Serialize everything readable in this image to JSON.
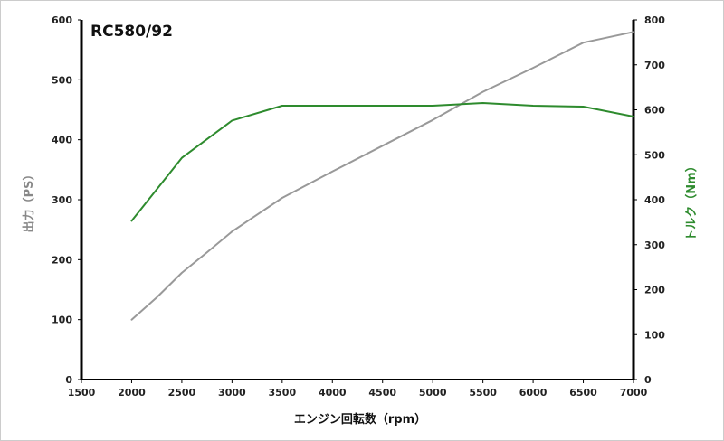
{
  "chart_data": {
    "type": "line",
    "title": "RC580/92",
    "xlabel": "エンジン回転数（rpm）",
    "ylabel_left": "出力（PS）",
    "ylabel_right": "トルク（Nm）",
    "xlim": [
      1500,
      7000
    ],
    "x_ticks": [
      "1500",
      "2000",
      "2500",
      "3000",
      "3500",
      "4000",
      "4500",
      "5000",
      "5500",
      "6000",
      "6500",
      "7000"
    ],
    "ylim_left": [
      0,
      600
    ],
    "y_ticks_left": [
      "0",
      "100",
      "200",
      "300",
      "400",
      "500",
      "600"
    ],
    "ylim_right": [
      0,
      800
    ],
    "y_ticks_right": [
      "0",
      "100",
      "200",
      "300",
      "400",
      "500",
      "600",
      "700",
      "800"
    ],
    "grid": false,
    "series": [
      {
        "axis": "left",
        "color": "#999999",
        "x": [
          2000,
          2250,
          2500,
          2750,
          3000,
          3250,
          3500,
          4000,
          4500,
          5000,
          5500,
          6000,
          6500,
          7000
        ],
        "values": [
          100,
          137,
          178,
          212,
          247,
          275,
          303,
          347,
          390,
          433,
          480,
          520,
          562,
          580
        ]
      },
      {
        "axis": "right",
        "color": "#2e8b2e",
        "x": [
          2000,
          2500,
          3000,
          3500,
          4000,
          4500,
          5000,
          5500,
          6000,
          6500,
          7000
        ],
        "values": [
          353,
          493,
          576,
          609,
          609,
          609,
          609,
          615,
          609,
          607,
          585
        ]
      }
    ]
  }
}
